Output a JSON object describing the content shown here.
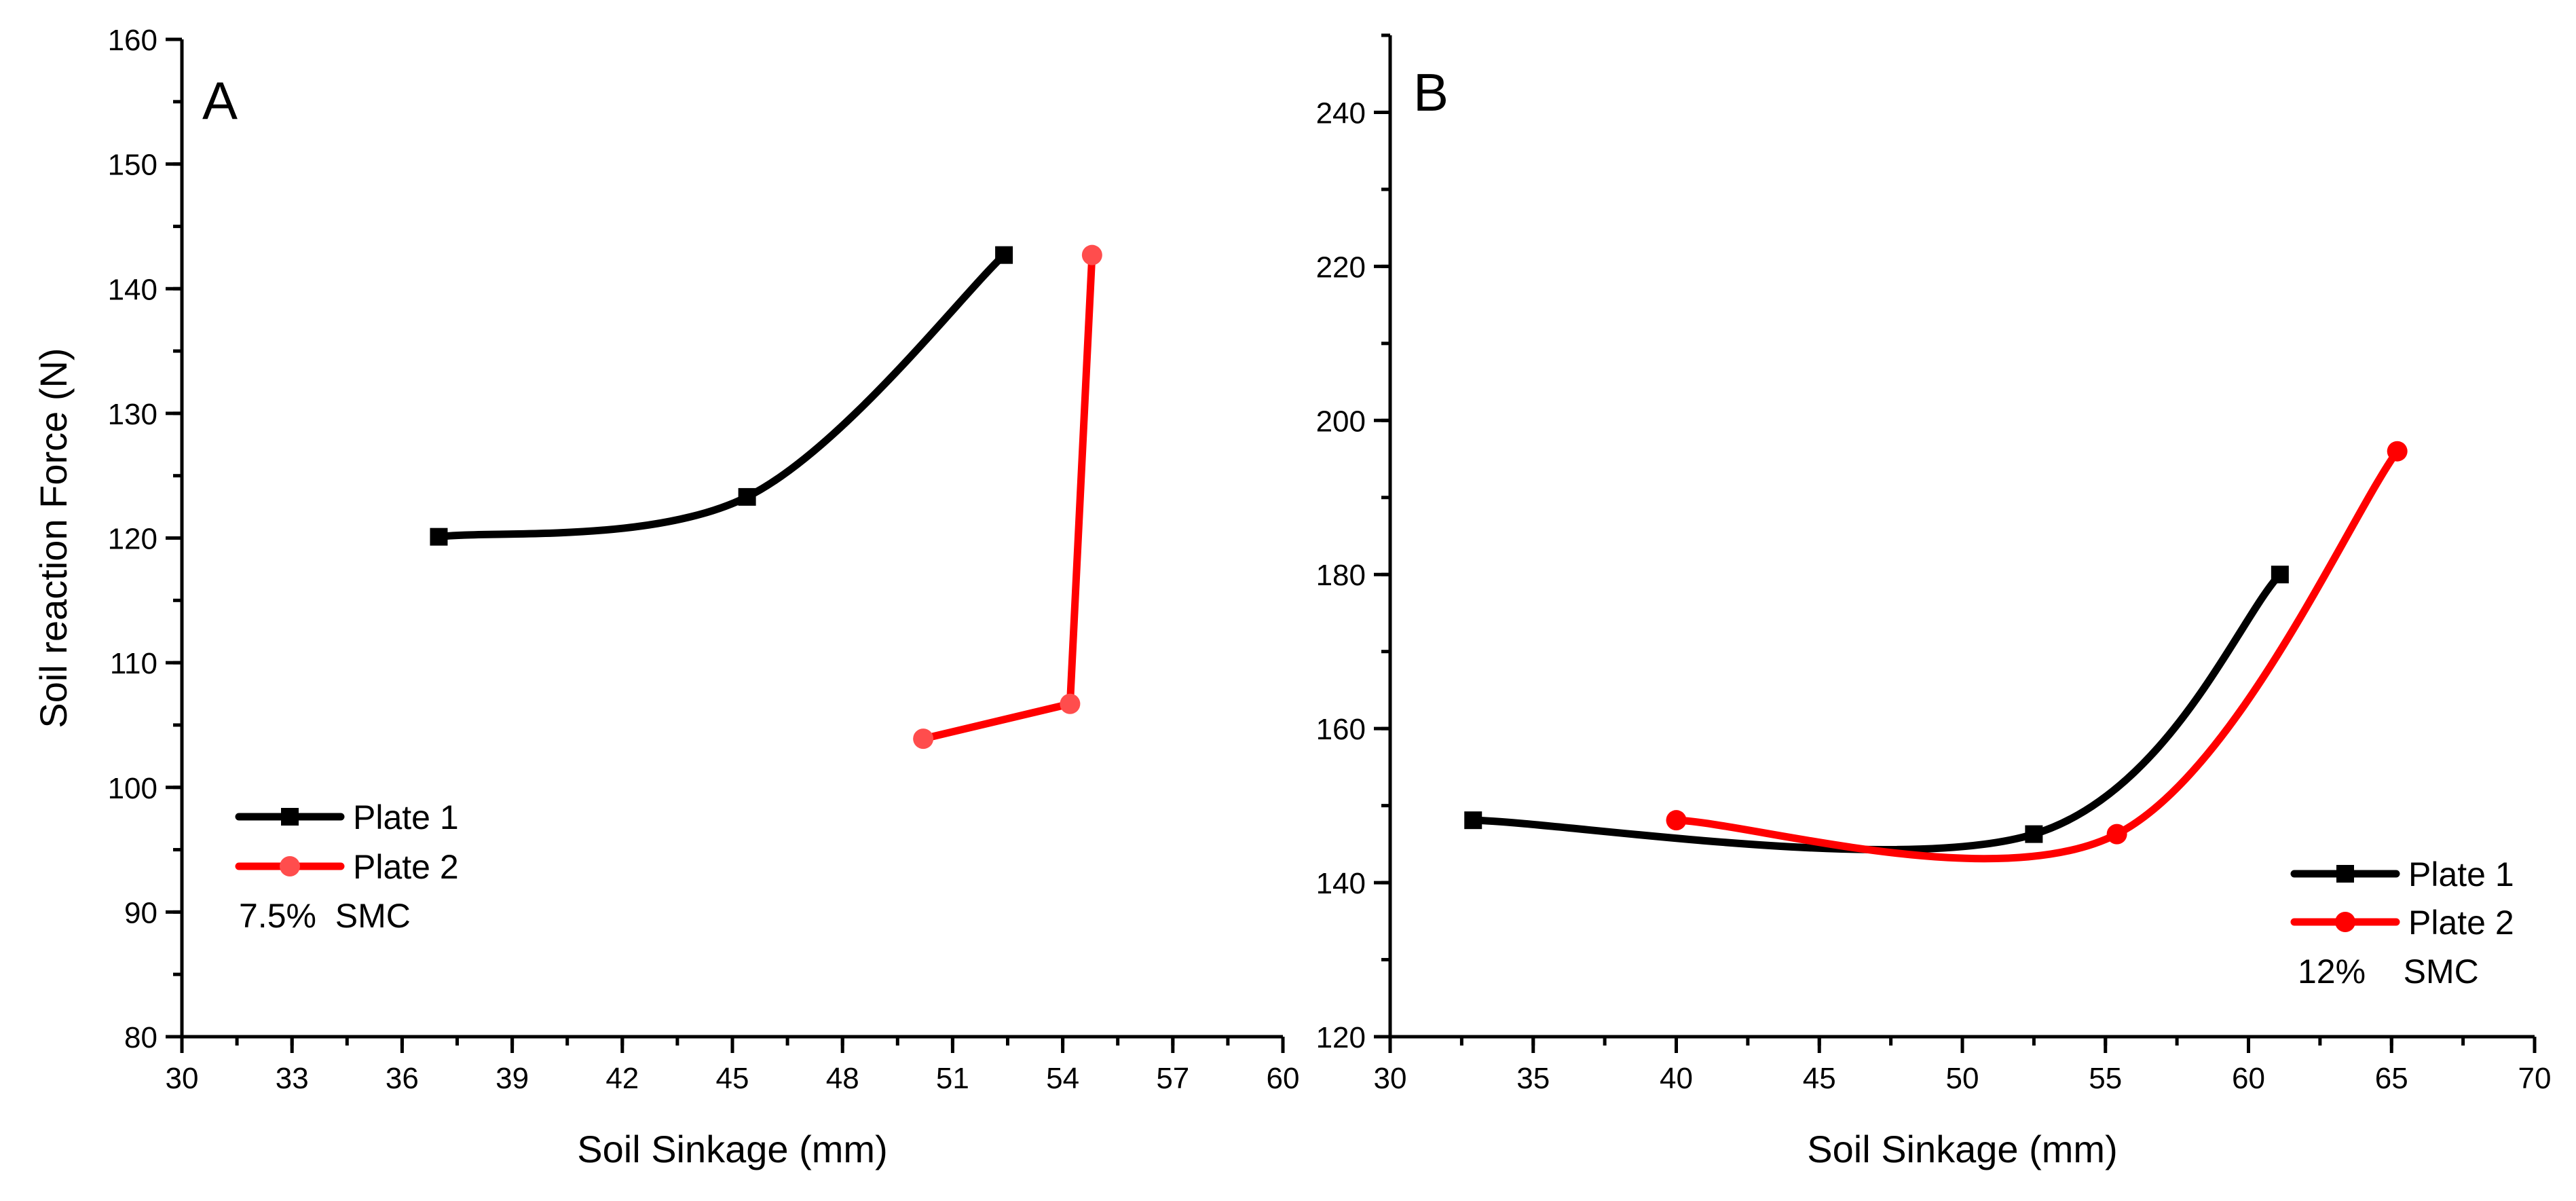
{
  "chart_data": [
    {
      "type": "line",
      "panel_label": "A",
      "xlabel": "Soil Sinkage (mm)",
      "ylabel": "Soil reaction Force (N)",
      "xlim": [
        30,
        60
      ],
      "ylim": [
        80,
        160
      ],
      "xticks": [
        30,
        33,
        36,
        39,
        42,
        45,
        48,
        51,
        54,
        57,
        60
      ],
      "yticks": [
        80,
        90,
        100,
        110,
        120,
        130,
        140,
        150,
        160
      ],
      "x_minor_step": 1.5,
      "y_minor_step": 5,
      "grid": false,
      "legend_position": "bottom-left",
      "annotation": "7.5%  SMC",
      "series": [
        {
          "name": "Plate 1",
          "color": "#000000",
          "marker": "square",
          "smooth": true,
          "x": [
            37.0,
            45.4,
            52.4
          ],
          "y": [
            120.1,
            123.3,
            142.7
          ]
        },
        {
          "name": "Plate 2",
          "color": "#ff0000",
          "marker_color": "#ff4d4d",
          "marker": "circle",
          "smooth": false,
          "x": [
            50.2,
            54.2,
            54.8
          ],
          "y": [
            103.9,
            106.7,
            142.7
          ]
        }
      ]
    },
    {
      "type": "line",
      "panel_label": "B",
      "xlabel": "Soil Sinkage (mm)",
      "ylabel": "",
      "xlim": [
        30,
        70
      ],
      "ylim": [
        120,
        250
      ],
      "xticks": [
        30,
        35,
        40,
        45,
        50,
        55,
        60,
        65,
        70
      ],
      "yticks": [
        120,
        140,
        160,
        180,
        200,
        220,
        240
      ],
      "x_minor_step": 2.5,
      "y_minor_step": 10,
      "grid": false,
      "legend_position": "bottom-right",
      "annotation": "12%    SMC",
      "series": [
        {
          "name": "Plate 1",
          "color": "#000000",
          "marker": "square",
          "smooth": true,
          "x": [
            32.9,
            52.5,
            61.1
          ],
          "y": [
            148.1,
            146.3,
            180.0
          ]
        },
        {
          "name": "Plate 2",
          "color": "#ff0000",
          "marker_color": "#ff0000",
          "marker": "circle",
          "smooth": true,
          "x": [
            40.0,
            55.4,
            65.2
          ],
          "y": [
            148.1,
            146.3,
            196.0
          ]
        }
      ]
    }
  ]
}
